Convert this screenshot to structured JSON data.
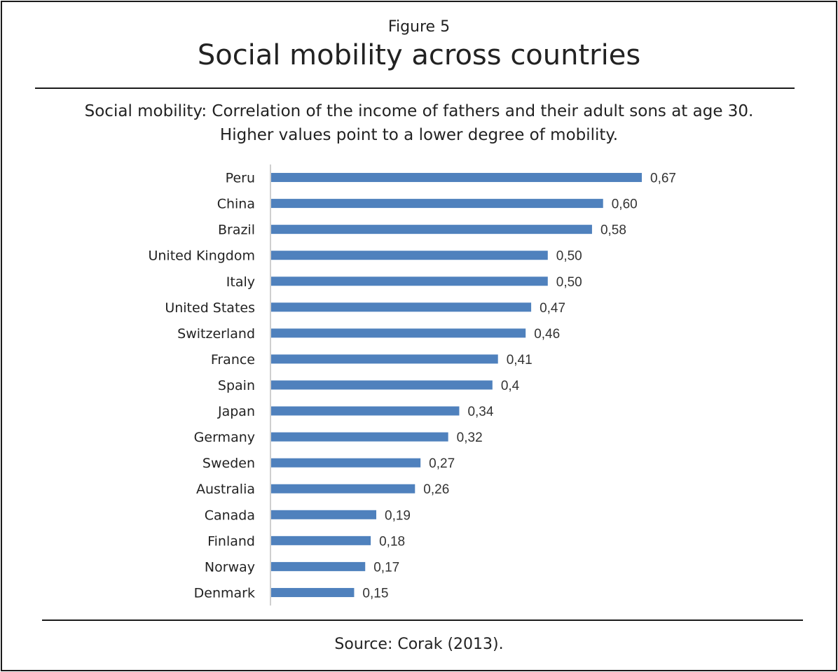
{
  "figure_label": "Figure 5",
  "title": "Social mobility across countries",
  "subtitle_line1": "Social mobility: Correlation of the income of fathers and their adult sons at age 30.",
  "subtitle_line2": "Higher values point to a lower degree of mobility.",
  "source": "Source: Corak (2013).",
  "colors": {
    "bar": "#4f81bd",
    "axis": "#bfbfbf"
  },
  "chart_data": {
    "type": "bar",
    "orientation": "horizontal",
    "categories": [
      "Peru",
      "China",
      "Brazil",
      "United Kingdom",
      "Italy",
      "United States",
      "Switzerland",
      "France",
      "Spain",
      "Japan",
      "Germany",
      "Sweden",
      "Australia",
      "Canada",
      "Finland",
      "Norway",
      "Denmark"
    ],
    "values": [
      0.67,
      0.6,
      0.58,
      0.5,
      0.5,
      0.47,
      0.46,
      0.41,
      0.4,
      0.34,
      0.32,
      0.27,
      0.26,
      0.19,
      0.18,
      0.17,
      0.15
    ],
    "value_labels": [
      "0,67",
      "0,60",
      "0,58",
      "0,50",
      "0,50",
      "0,47",
      "0,46",
      "0,41",
      "0,4",
      "0,34",
      "0,32",
      "0,27",
      "0,26",
      "0,19",
      "0,18",
      "0,17",
      "0,15"
    ],
    "xlim": [
      0,
      0.67
    ],
    "grid": false,
    "legend": "none"
  }
}
